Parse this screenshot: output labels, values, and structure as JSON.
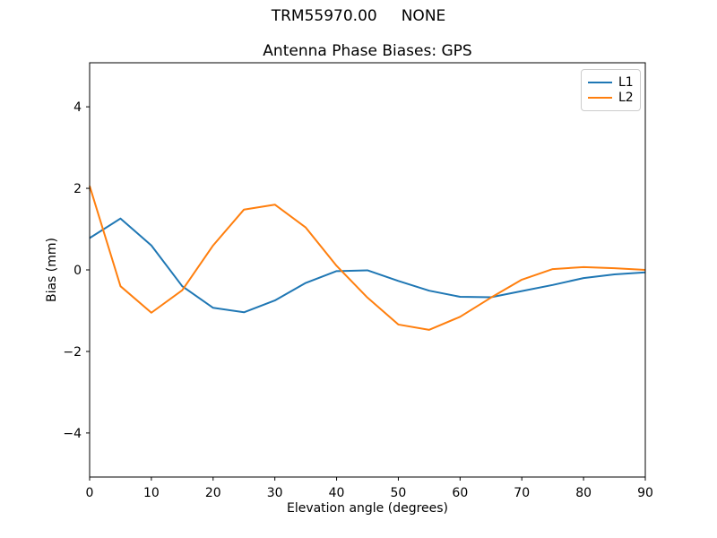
{
  "figure": {
    "suptitle": "TRM55970.00     NONE",
    "background": "#ffffff"
  },
  "chart_data": {
    "type": "line",
    "title": "Antenna Phase Biases: GPS",
    "xlabel": "Elevation angle (degrees)",
    "ylabel": "Bias (mm)",
    "xlim": [
      0,
      90
    ],
    "ylim": [
      -5.08,
      5.08
    ],
    "xticks": [
      0,
      10,
      20,
      30,
      40,
      50,
      60,
      70,
      80,
      90
    ],
    "yticks": [
      -4,
      -2,
      0,
      2,
      4
    ],
    "grid": false,
    "legend": {
      "position": "upper right",
      "entries": [
        "L1",
        "L2"
      ]
    },
    "x": [
      0,
      5,
      10,
      15,
      20,
      25,
      30,
      35,
      40,
      45,
      50,
      55,
      60,
      65,
      70,
      75,
      80,
      85,
      90
    ],
    "series": [
      {
        "name": "L1",
        "color": "#1f77b4",
        "values": [
          0.78,
          1.26,
          0.6,
          -0.4,
          -0.93,
          -1.04,
          -0.75,
          -0.32,
          -0.03,
          -0.01,
          -0.27,
          -0.51,
          -0.66,
          -0.67,
          -0.52,
          -0.37,
          -0.2,
          -0.11,
          -0.06
        ]
      },
      {
        "name": "L2",
        "color": "#ff7f0e",
        "values": [
          2.06,
          -0.4,
          -1.05,
          -0.5,
          0.6,
          1.48,
          1.6,
          1.04,
          0.1,
          -0.68,
          -1.34,
          -1.47,
          -1.15,
          -0.68,
          -0.24,
          0.02,
          0.07,
          0.04,
          0.0
        ]
      }
    ],
    "axis_color": "#000000",
    "tick_label_color": "#000000"
  }
}
